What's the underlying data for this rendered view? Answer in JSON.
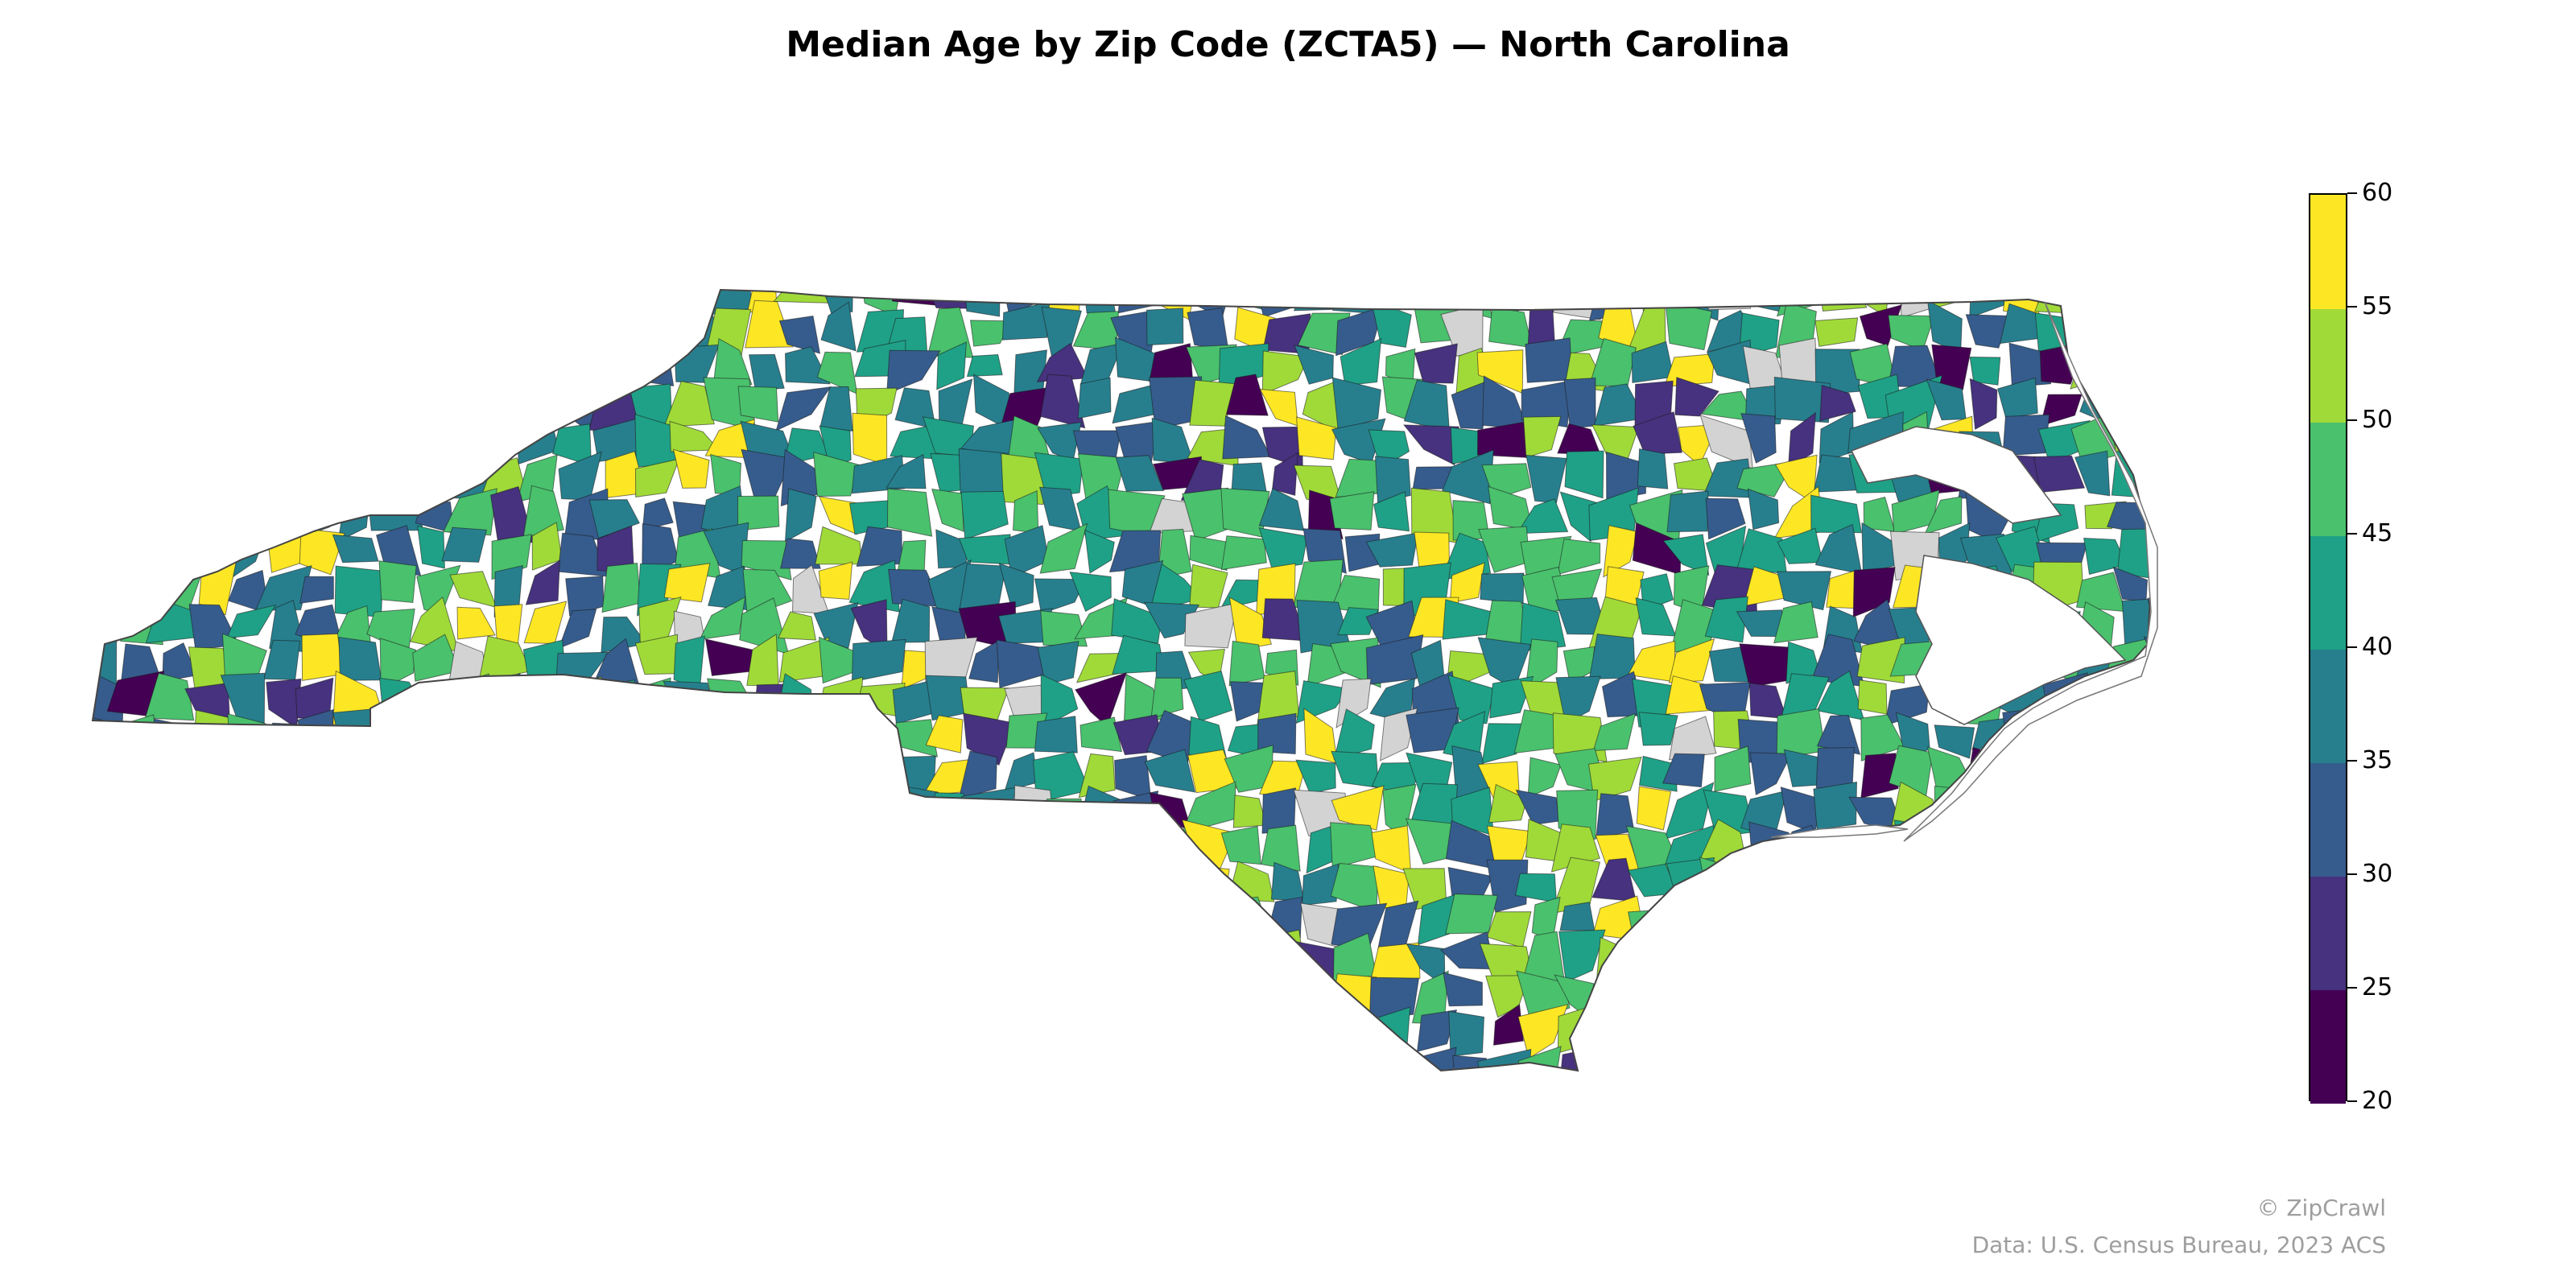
{
  "title": "Median Age by Zip Code (ZCTA5) — North Carolina",
  "colorbar": {
    "min": 20,
    "max": 60,
    "ticks": [
      "20",
      "25",
      "30",
      "35",
      "40",
      "45",
      "50",
      "55",
      "60"
    ],
    "colors": [
      "#440154",
      "#46327e",
      "#365c8d",
      "#277f8e",
      "#1fa187",
      "#4ac16d",
      "#a0da39",
      "#fde725"
    ],
    "no_data_color": "#d3d3d3"
  },
  "credits": {
    "copyright": "© ZipCrawl",
    "source": "Data: U.S. Census Bureau, 2023 ACS"
  }
}
